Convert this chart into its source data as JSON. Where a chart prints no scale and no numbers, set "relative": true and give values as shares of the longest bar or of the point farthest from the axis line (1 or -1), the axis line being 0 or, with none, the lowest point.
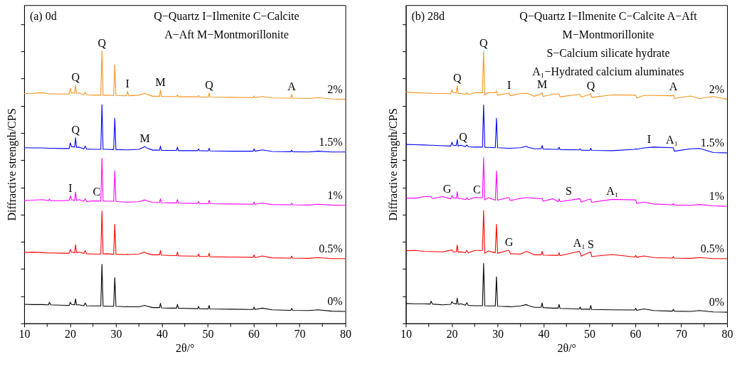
{
  "chart_data": [
    {
      "type": "line",
      "title": "(a) 0d",
      "xlabel": "2θ/°",
      "ylabel": "Diffractive strength/CPS",
      "relative": true,
      "xlim": [
        10,
        80
      ],
      "xticks": [
        10,
        {
          "value": 15,
          "label": null
        },
        20,
        {
          "value": 25,
          "label": null
        },
        30,
        {
          "value": 35,
          "label": null
        },
        40,
        {
          "value": 45,
          "label": null
        },
        50,
        {
          "value": 55,
          "label": null
        },
        60,
        {
          "value": 65,
          "label": null
        },
        70,
        {
          "value": 75,
          "label": null
        },
        80
      ],
      "x": [
        10,
        12,
        14,
        15.3,
        15.5,
        15.8,
        18,
        19.8,
        20.05,
        20.3,
        21.0,
        21.2,
        21.4,
        22,
        23,
        23.3,
        23.6,
        25,
        26.7,
        26.95,
        27.2,
        28,
        29.5,
        29.75,
        30,
        32.3,
        32.5,
        32.8,
        35,
        36.3,
        36.6,
        38,
        39.5,
        39.7,
        39.9,
        42,
        43.2,
        43.4,
        43.6,
        47.8,
        48,
        48.2,
        50.1,
        50.3,
        50.5,
        55,
        59.9,
        60.1,
        60.3,
        61.9,
        64,
        68.1,
        68.3,
        68.5,
        72,
        74,
        77,
        80
      ],
      "series": [
        {
          "name": "2%",
          "color": "#f7941d",
          "values": [
            0.845,
            0.846,
            0.848,
            0.844,
            0.844,
            0.844,
            0.843,
            0.843,
            0.863,
            0.848,
            0.846,
            0.876,
            0.846,
            0.847,
            0.84,
            0.85,
            0.84,
            0.839,
            0.839,
            1.0,
            0.839,
            0.839,
            0.838,
            0.951,
            0.838,
            0.837,
            0.853,
            0.837,
            0.839,
            0.846,
            0.843,
            0.835,
            0.835,
            0.858,
            0.834,
            0.834,
            0.834,
            0.84,
            0.833,
            0.833,
            0.838,
            0.832,
            0.832,
            0.847,
            0.832,
            0.831,
            0.83,
            0.836,
            0.83,
            0.834,
            0.829,
            0.828,
            0.842,
            0.828,
            0.827,
            0.83,
            0.825,
            0.824
          ]
        },
        {
          "name": "1.5%",
          "color": "#0000ff",
          "values": [
            0.646,
            0.645,
            0.645,
            0.644,
            0.644,
            0.644,
            0.643,
            0.643,
            0.664,
            0.65,
            0.648,
            0.682,
            0.647,
            0.648,
            0.641,
            0.652,
            0.641,
            0.64,
            0.64,
            0.804,
            0.64,
            0.64,
            0.639,
            0.754,
            0.639,
            0.638,
            0.638,
            0.638,
            0.64,
            0.65,
            0.646,
            0.637,
            0.637,
            0.652,
            0.636,
            0.636,
            0.636,
            0.648,
            0.635,
            0.635,
            0.641,
            0.635,
            0.634,
            0.644,
            0.634,
            0.633,
            0.633,
            0.642,
            0.633,
            0.638,
            0.632,
            0.631,
            0.637,
            0.631,
            0.63,
            0.633,
            0.63,
            0.63
          ]
        },
        {
          "name": "1%",
          "color": "#ff00ff",
          "values": [
            0.452,
            0.453,
            0.455,
            0.451,
            0.457,
            0.451,
            0.451,
            0.452,
            0.468,
            0.455,
            0.452,
            0.483,
            0.452,
            0.455,
            0.449,
            0.458,
            0.448,
            0.45,
            0.45,
            0.607,
            0.45,
            0.449,
            0.449,
            0.561,
            0.448,
            0.446,
            0.446,
            0.446,
            0.447,
            0.454,
            0.451,
            0.445,
            0.444,
            0.458,
            0.444,
            0.443,
            0.443,
            0.455,
            0.442,
            0.441,
            0.448,
            0.441,
            0.44,
            0.452,
            0.44,
            0.439,
            0.438,
            0.446,
            0.438,
            0.442,
            0.437,
            0.436,
            0.442,
            0.436,
            0.435,
            0.438,
            0.435,
            0.434
          ]
        },
        {
          "name": "0.5%",
          "color": "#ff0000",
          "values": [
            0.261,
            0.262,
            0.26,
            0.259,
            0.259,
            0.259,
            0.258,
            0.258,
            0.271,
            0.262,
            0.26,
            0.289,
            0.26,
            0.262,
            0.257,
            0.268,
            0.256,
            0.255,
            0.255,
            0.413,
            0.255,
            0.256,
            0.254,
            0.364,
            0.254,
            0.253,
            0.254,
            0.253,
            0.255,
            0.262,
            0.258,
            0.252,
            0.252,
            0.268,
            0.251,
            0.249,
            0.249,
            0.262,
            0.248,
            0.247,
            0.255,
            0.246,
            0.246,
            0.258,
            0.245,
            0.244,
            0.243,
            0.252,
            0.242,
            0.248,
            0.241,
            0.24,
            0.247,
            0.24,
            0.239,
            0.242,
            0.238,
            0.238
          ]
        },
        {
          "name": "0%",
          "color": "#000000",
          "values": [
            0.07,
            0.069,
            0.069,
            0.068,
            0.078,
            0.068,
            0.067,
            0.066,
            0.078,
            0.07,
            0.068,
            0.09,
            0.068,
            0.068,
            0.065,
            0.075,
            0.065,
            0.064,
            0.064,
            0.217,
            0.064,
            0.063,
            0.063,
            0.168,
            0.063,
            0.061,
            0.062,
            0.061,
            0.061,
            0.066,
            0.064,
            0.058,
            0.058,
            0.074,
            0.057,
            0.056,
            0.056,
            0.07,
            0.056,
            0.054,
            0.062,
            0.054,
            0.053,
            0.066,
            0.053,
            0.052,
            0.051,
            0.06,
            0.051,
            0.056,
            0.05,
            0.048,
            0.055,
            0.048,
            0.047,
            0.05,
            0.045,
            0.044
          ]
        }
      ],
      "annotations": [
        "Q−Quartz   I−Ilmenite   C−Calcite",
        "A−Aft  M−Montmorillonite",
        {
          "text": "Q",
          "x": 26.95,
          "y": 1.0
        },
        {
          "text": "Q",
          "x": 21.2,
          "y": 0.876
        },
        {
          "text": "I",
          "x": 32.5,
          "y": 0.853
        },
        {
          "text": "M",
          "x": 39.7,
          "y": 0.858
        },
        {
          "text": "Q",
          "x": 50.3,
          "y": 0.847
        },
        {
          "text": "A",
          "x": 68.3,
          "y": 0.842
        },
        {
          "text": "Q",
          "x": 21.2,
          "y": 0.682
        },
        {
          "text": "M",
          "x": 36.3,
          "y": 0.65
        },
        {
          "text": "I",
          "x": 20.05,
          "y": 0.468
        },
        {
          "text": "C",
          "x": 25.8,
          "y": 0.455
        }
      ]
    },
    {
      "type": "line",
      "title": "(b) 28d",
      "xlabel": "2θ/°",
      "ylabel": "Diffractive strength/CPS",
      "relative": true,
      "xlim": [
        10,
        80
      ],
      "xticks": [
        10,
        {
          "value": 15,
          "label": null
        },
        20,
        {
          "value": 25,
          "label": null
        },
        30,
        {
          "value": 35,
          "label": null
        },
        40,
        {
          "value": 45,
          "label": null
        },
        50,
        {
          "value": 55,
          "label": null
        },
        60,
        {
          "value": 65,
          "label": null
        },
        70,
        {
          "value": 75,
          "label": null
        },
        80
      ],
      "x": [
        10,
        12,
        14,
        15.3,
        15.5,
        15.8,
        18,
        19.8,
        20.05,
        20.3,
        21.0,
        21.2,
        21.4,
        22,
        23,
        23.3,
        23.6,
        25,
        26.7,
        26.95,
        27.2,
        28,
        29.5,
        29.75,
        30,
        32.3,
        32.5,
        32.8,
        35,
        36.3,
        36.6,
        38,
        39.5,
        39.7,
        39.9,
        42,
        43.2,
        43.4,
        43.6,
        47.8,
        48,
        48.2,
        50.1,
        50.3,
        50.5,
        55,
        59.9,
        60.1,
        60.3,
        61.9,
        64,
        68.1,
        68.3,
        68.5,
        72,
        74,
        77,
        80
      ],
      "series": [
        {
          "name": "2%",
          "color": "#f7941d",
          "values": [
            0.85,
            0.848,
            0.847,
            0.846,
            0.846,
            0.846,
            0.845,
            0.844,
            0.858,
            0.849,
            0.847,
            0.873,
            0.845,
            0.846,
            0.842,
            0.848,
            0.841,
            0.848,
            0.848,
            1.0,
            0.84,
            0.848,
            0.848,
            0.855,
            0.839,
            0.846,
            0.846,
            0.837,
            0.845,
            0.846,
            0.845,
            0.835,
            0.844,
            0.848,
            0.834,
            0.843,
            0.843,
            0.843,
            0.833,
            0.842,
            0.842,
            0.832,
            0.841,
            0.845,
            0.831,
            0.84,
            0.839,
            0.839,
            0.829,
            0.838,
            0.838,
            0.837,
            0.84,
            0.827,
            0.836,
            0.827,
            0.834,
            0.824
          ]
        },
        {
          "name": "1.5%",
          "color": "#0000ff",
          "values": [
            0.658,
            0.657,
            0.656,
            0.655,
            0.655,
            0.655,
            0.653,
            0.652,
            0.666,
            0.655,
            0.654,
            0.676,
            0.652,
            0.655,
            0.65,
            0.656,
            0.649,
            0.648,
            0.648,
            0.803,
            0.647,
            0.647,
            0.646,
            0.754,
            0.646,
            0.644,
            0.644,
            0.644,
            0.646,
            0.651,
            0.648,
            0.642,
            0.642,
            0.654,
            0.641,
            0.64,
            0.64,
            0.648,
            0.639,
            0.638,
            0.642,
            0.637,
            0.636,
            0.644,
            0.636,
            0.635,
            0.64,
            0.642,
            0.64,
            0.645,
            0.648,
            0.646,
            0.646,
            0.633,
            0.642,
            0.643,
            0.628,
            0.627
          ]
        },
        {
          "name": "1%",
          "color": "#ff00ff",
          "values": [
            0.461,
            0.46,
            0.466,
            0.466,
            0.466,
            0.459,
            0.466,
            0.458,
            0.47,
            0.462,
            0.46,
            0.484,
            0.459,
            0.459,
            0.455,
            0.462,
            0.455,
            0.463,
            0.462,
            0.609,
            0.454,
            0.462,
            0.453,
            0.56,
            0.453,
            0.462,
            0.462,
            0.451,
            0.46,
            0.462,
            0.462,
            0.46,
            0.459,
            0.46,
            0.449,
            0.458,
            0.448,
            0.458,
            0.448,
            0.458,
            0.458,
            0.446,
            0.457,
            0.457,
            0.445,
            0.456,
            0.454,
            0.454,
            0.441,
            0.446,
            0.439,
            0.436,
            0.441,
            0.435,
            0.434,
            0.437,
            0.432,
            0.43
          ]
        },
        {
          "name": "0.5%",
          "color": "#ff0000",
          "values": [
            0.267,
            0.268,
            0.265,
            0.264,
            0.264,
            0.264,
            0.263,
            0.269,
            0.27,
            0.263,
            0.263,
            0.288,
            0.262,
            0.263,
            0.26,
            0.269,
            0.259,
            0.268,
            0.268,
            0.415,
            0.258,
            0.266,
            0.26,
            0.365,
            0.258,
            0.268,
            0.268,
            0.256,
            0.255,
            0.265,
            0.263,
            0.252,
            0.252,
            0.265,
            0.251,
            0.25,
            0.25,
            0.26,
            0.249,
            0.265,
            0.258,
            0.247,
            0.262,
            0.262,
            0.246,
            0.253,
            0.244,
            0.25,
            0.243,
            0.248,
            0.242,
            0.24,
            0.246,
            0.24,
            0.239,
            0.242,
            0.238,
            0.238
          ]
        },
        {
          "name": "0%",
          "color": "#000000",
          "values": [
            0.073,
            0.072,
            0.072,
            0.071,
            0.082,
            0.071,
            0.068,
            0.07,
            0.08,
            0.074,
            0.071,
            0.093,
            0.07,
            0.072,
            0.067,
            0.076,
            0.066,
            0.065,
            0.065,
            0.22,
            0.065,
            0.064,
            0.064,
            0.171,
            0.063,
            0.062,
            0.062,
            0.061,
            0.064,
            0.069,
            0.066,
            0.059,
            0.059,
            0.075,
            0.058,
            0.056,
            0.056,
            0.07,
            0.055,
            0.053,
            0.06,
            0.052,
            0.052,
            0.066,
            0.051,
            0.05,
            0.049,
            0.056,
            0.048,
            0.053,
            0.047,
            0.045,
            0.052,
            0.045,
            0.044,
            0.047,
            0.042,
            0.041
          ]
        }
      ],
      "annotations": [
        "Q−Quartz  I−Ilmenite C−Calcite  A−Aft",
        "M−Montmorillonite",
        "S−Calcium silicate hydrate",
        "A₁−Hydrated calcium aluminates",
        {
          "text": "Q",
          "x": 26.95,
          "y": 1.0
        },
        {
          "text": "Q",
          "x": 21.2,
          "y": 0.873
        },
        {
          "text": "I",
          "x": 32.5,
          "y": 0.846
        },
        {
          "text": "M",
          "x": 39.7,
          "y": 0.848
        },
        {
          "text": "Q",
          "x": 50.3,
          "y": 0.845
        },
        {
          "text": "A",
          "x": 68.3,
          "y": 0.84
        },
        {
          "text": "Q",
          "x": 22.5,
          "y": 0.656
        },
        {
          "text": "I",
          "x": 63,
          "y": 0.648
        },
        {
          "text": "A₁",
          "x": 68,
          "y": 0.646
        },
        {
          "text": "G",
          "x": 19,
          "y": 0.466
        },
        {
          "text": "C",
          "x": 25.5,
          "y": 0.463
        },
        {
          "text": "S",
          "x": 45.5,
          "y": 0.458
        },
        {
          "text": "A₁",
          "x": 55,
          "y": 0.456
        },
        {
          "text": "G",
          "x": 32.5,
          "y": 0.268
        },
        {
          "text": "A₁",
          "x": 47.8,
          "y": 0.265
        },
        {
          "text": "S",
          "x": 50.3,
          "y": 0.262
        }
      ]
    }
  ]
}
